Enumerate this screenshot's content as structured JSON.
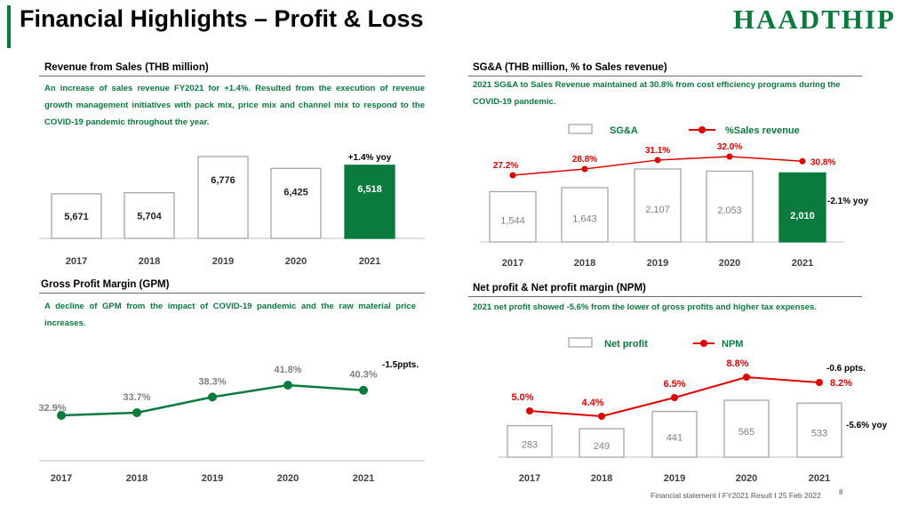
{
  "page": {
    "title": "Financial Highlights – Profit & Loss",
    "logo": "HAADTHIP",
    "footer": "Financial statement I FY2021 Result I 25 Feb 2022",
    "page_number": "8"
  },
  "colors": {
    "green": "#0a7a3d",
    "red": "#e00000",
    "bar_outline": "#a6a6a6",
    "axis": "#bfbfbf"
  },
  "panels": {
    "revenue": {
      "title": "Revenue from Sales (THB million)",
      "desc": "An increase of sales revenue FY2021 for +1.4%. Resulted from the execution of revenue growth management initiatives with pack mix, price mix and channel mix to respond to the COVID-19 pandemic throughout the year."
    },
    "sga": {
      "title": "SG&A (THB million, % to Sales  revenue)",
      "desc": "2021 SG&A to Sales Revenue maintained at 30.8% from cost efficiency programs during the COVID-19 pandemic."
    },
    "gpm": {
      "title": "Gross Profit Margin (GPM)",
      "desc": "A decline of GPM from the impact of COVID-19 pandemic and the raw material price increases."
    },
    "np": {
      "title": "Net profit & Net profit margin (NPM)",
      "desc": "2021 net profit showed -5.6% from the lower of gross profits and higher tax expenses."
    }
  },
  "chart_data": [
    {
      "id": "revenue",
      "type": "bar",
      "categories": [
        "2017",
        "2018",
        "2019",
        "2020",
        "2021"
      ],
      "values": [
        5671,
        5704,
        6776,
        6425,
        6518
      ],
      "value_labels": [
        "5,671",
        "5,704",
        "6,776",
        "6,425",
        "6,518"
      ],
      "highlight_index": 4,
      "annotation": "+1.4% yoy"
    },
    {
      "id": "sga",
      "type": "bar",
      "categories": [
        "2017",
        "2018",
        "2019",
        "2020",
        "2021"
      ],
      "series": [
        {
          "name": "SG&A",
          "values": [
            1544,
            1643,
            2107,
            2053,
            2010
          ],
          "labels": [
            "1,544",
            "1,643",
            "2,107",
            "2,053",
            "2,010"
          ]
        },
        {
          "name": "%Sales revenue",
          "values": [
            27.2,
            28.8,
            31.1,
            32.0,
            30.8
          ],
          "labels": [
            "27.2%",
            "28.8%",
            "31.1%",
            "32.0%",
            "30.8%"
          ]
        }
      ],
      "highlight_index": 4,
      "annotation": "-2.1% yoy",
      "legend": "top"
    },
    {
      "id": "gpm",
      "type": "line",
      "categories": [
        "2017",
        "2018",
        "2019",
        "2020",
        "2021"
      ],
      "values": [
        32.9,
        33.7,
        38.3,
        41.8,
        40.3
      ],
      "labels": [
        "32.9%",
        "33.7%",
        "38.3%",
        "41.8%",
        "40.3%"
      ],
      "annotation": "-1.5ppts."
    },
    {
      "id": "np",
      "type": "bar",
      "categories": [
        "2017",
        "2018",
        "2019",
        "2020",
        "2021"
      ],
      "series": [
        {
          "name": "Net profit",
          "values": [
            283,
            249,
            441,
            565,
            533
          ],
          "labels": [
            "283",
            "249",
            "441",
            "565",
            "533"
          ]
        },
        {
          "name": "NPM",
          "values": [
            5.0,
            4.4,
            6.5,
            8.8,
            8.2
          ],
          "labels": [
            "5.0%",
            "4.4%",
            "6.5%",
            "8.8%",
            "8.2%"
          ]
        }
      ],
      "annotation_npm": "-0.6 ppts.",
      "annotation_np": "-5.6% yoy",
      "legend": "top"
    }
  ]
}
